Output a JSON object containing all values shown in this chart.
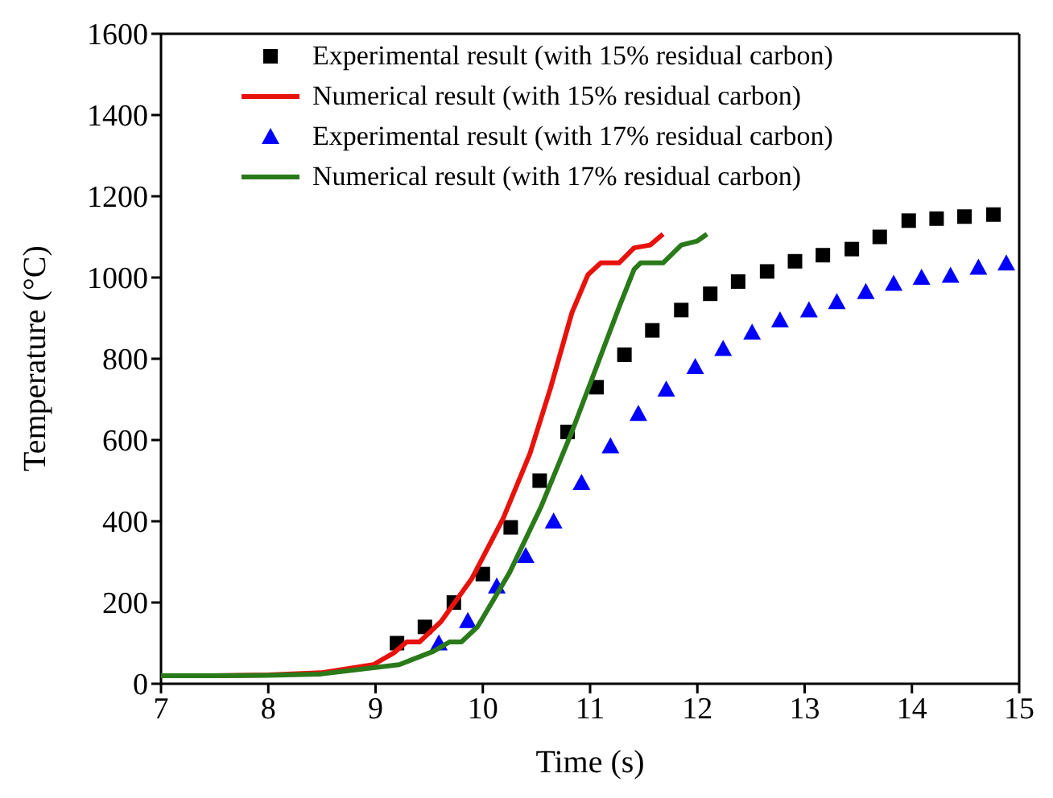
{
  "chart_data": {
    "type": "scatter",
    "xlabel": "Time (s)",
    "ylabel": "Temperature (°C)",
    "xlim": [
      7,
      15
    ],
    "xticks": [
      7,
      8,
      9,
      10,
      11,
      12,
      13,
      14,
      15
    ],
    "ylim": [
      0,
      1600
    ],
    "yticks": [
      0,
      200,
      400,
      600,
      800,
      1000,
      1200,
      1400,
      1600
    ],
    "legend": "top",
    "series": [
      {
        "name": "Experimental result (with 15% residual carbon)",
        "marker": "square",
        "color": "#000000",
        "x": [
          9.2,
          9.46,
          9.73,
          10.0,
          10.26,
          10.53,
          10.79,
          11.06,
          11.32,
          11.58,
          11.85,
          12.12,
          12.38,
          12.65,
          12.91,
          13.17,
          13.44,
          13.7,
          13.97,
          14.23,
          14.49,
          14.76
        ],
        "values": [
          100,
          140,
          200,
          270,
          385,
          500,
          620,
          730,
          810,
          870,
          920,
          960,
          990,
          1015,
          1040,
          1055,
          1070,
          1100,
          1140,
          1145,
          1150,
          1155
        ]
      },
      {
        "name": "Numerical result (with 15% residual carbon)",
        "type": "line",
        "marker": "none",
        "color": "#e8120c",
        "x": [
          7,
          7.5,
          8,
          8.49,
          8.98,
          9.17,
          9.29,
          9.41,
          9.61,
          9.9,
          10.19,
          10.44,
          10.63,
          10.83,
          10.98,
          11.1,
          11.27,
          11.41,
          11.56,
          11.68
        ],
        "values": [
          20,
          20,
          22,
          27,
          47,
          76,
          103,
          103,
          153,
          260,
          407,
          567,
          727,
          913,
          1007,
          1036,
          1036,
          1073,
          1080,
          1107
        ]
      },
      {
        "name": "Experimental result (with 17% residual carbon)",
        "marker": "triangle",
        "color": "#0000ff",
        "x": [
          9.59,
          9.86,
          10.13,
          10.4,
          10.66,
          10.92,
          11.19,
          11.45,
          11.71,
          11.98,
          12.24,
          12.51,
          12.77,
          13.04,
          13.3,
          13.57,
          13.83,
          14.09,
          14.36,
          14.62,
          14.88
        ],
        "values": [
          100,
          155,
          240,
          315,
          400,
          495,
          585,
          665,
          725,
          780,
          825,
          865,
          895,
          920,
          940,
          965,
          985,
          1000,
          1005,
          1025,
          1035
        ]
      },
      {
        "name": "Numerical result (with 17% residual carbon)",
        "type": "line",
        "marker": "none",
        "color": "#2a7a1a",
        "x": [
          7,
          7.5,
          8,
          8.49,
          9.22,
          9.54,
          9.69,
          9.8,
          9.95,
          10.25,
          10.54,
          10.83,
          11.08,
          11.27,
          11.41,
          11.47,
          11.68,
          11.85,
          12.0,
          12.09
        ],
        "values": [
          20,
          20,
          21,
          24,
          47,
          80,
          103,
          103,
          140,
          274,
          434,
          620,
          794,
          927,
          1020,
          1036,
          1036,
          1080,
          1090,
          1107
        ]
      }
    ]
  }
}
